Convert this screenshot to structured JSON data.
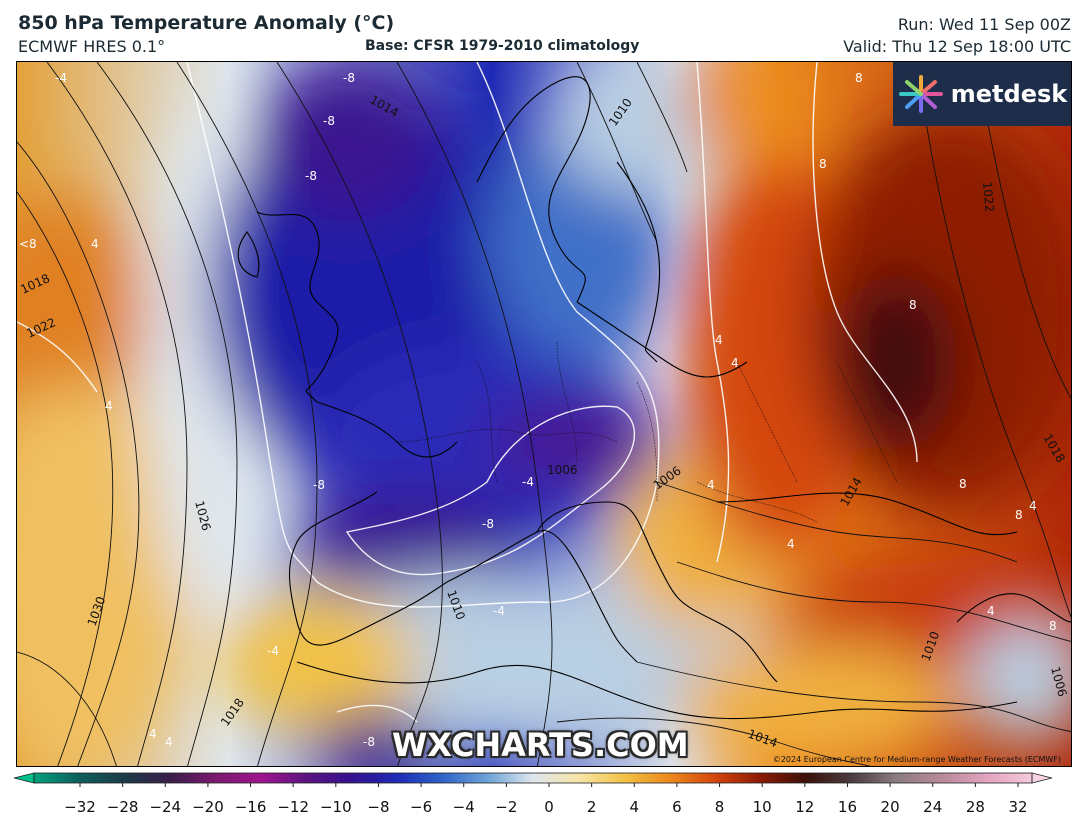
{
  "header": {
    "title": "850 hPa Temperature Anomaly (°C)",
    "model": "ECMWF HRES 0.1°",
    "base": "Base: CFSR 1979-2010 climatology",
    "run": "Run: Wed 11 Sep 00Z",
    "valid": "Valid: Thu 12 Sep 18:00 UTC"
  },
  "logo": {
    "text": "metdesk",
    "icon": "flower-burst-icon"
  },
  "watermark": "WXCHARTS.COM",
  "copyright": "©2024 European Centre for Medium-range Weather Forecasts (ECMWF)",
  "isobar_labels": [
    "1010",
    "1014",
    "1018",
    "1022",
    "1026",
    "1030",
    "1018",
    "1006",
    "1006",
    "1010",
    "1014",
    "1014",
    "1010",
    "1018",
    "1022",
    "1006"
  ],
  "anomaly_labels": [
    "-4",
    "-8",
    "-8",
    "-8",
    "<8",
    "4",
    "4",
    "-8",
    "-4",
    "-8",
    "-4",
    "-4",
    "-8",
    "4",
    "4",
    "8",
    "8",
    "4",
    "4",
    "8",
    "8",
    "4",
    "4",
    "8",
    "8",
    "4",
    "4"
  ],
  "colorbar": {
    "ticks": [
      "−32",
      "−28",
      "−24",
      "−20",
      "−16",
      "−12",
      "−10",
      "−8",
      "−6",
      "−4",
      "−2",
      "0",
      "2",
      "4",
      "6",
      "8",
      "10",
      "12",
      "16",
      "20",
      "24",
      "28",
      "32"
    ],
    "colors": [
      "#00a07a",
      "#0f5e5e",
      "#1b3a48",
      "#3b1d4a",
      "#7a1a6e",
      "#a0158e",
      "#5c1580",
      "#35108f",
      "#1e2ab5",
      "#2e64c8",
      "#6fa3d8",
      "#dfe7ee",
      "#f7e6a8",
      "#f2c247",
      "#ec8a1d",
      "#d4470d",
      "#8e1a05",
      "#3c1008",
      "#4a3a3e",
      "#8a7b82",
      "#b88a9a",
      "#e2a4c0",
      "#f4c9da"
    ]
  }
}
